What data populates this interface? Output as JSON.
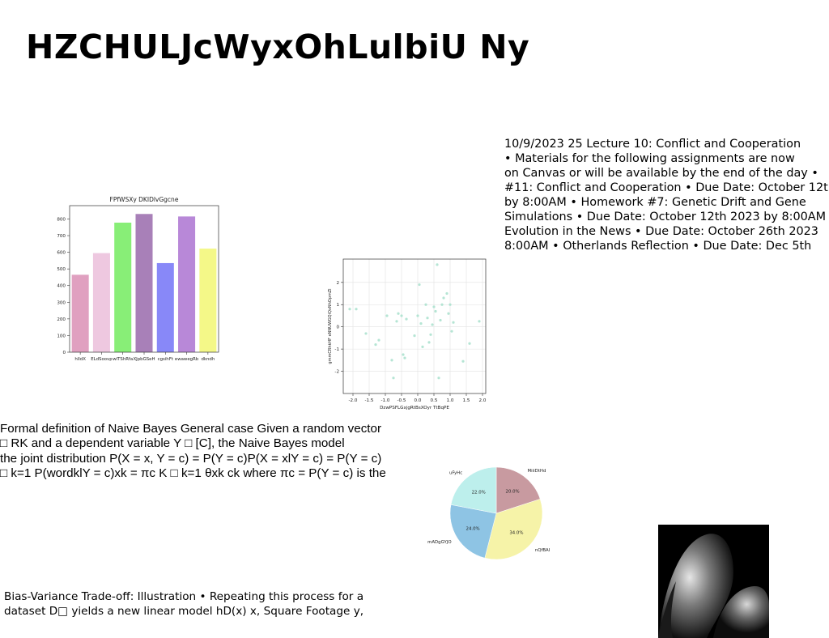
{
  "title": "HZCHULJcWyxOhLulbiU Ny",
  "lecture_text": {
    "lines": [
      "10/9/2023 25 Lecture 10: Conflict and Cooperation",
      "• Materials for the following assignments are now",
      "on Canvas or will be available by the end of the day •",
      "#11: Conflict and Cooperation • Due Date: October 12th",
      "by 8:00AM • Homework #7: Genetic Drift and Gene",
      "Simulations • Due Date: October 12th 2023 by 8:00AM",
      "Evolution in the News • Due Date: October 26th 2023",
      "8:00AM • Otherlands Reflection • Due Date: Dec 5th"
    ]
  },
  "naive_bayes_text": {
    "lines": [
      "Formal definition of Naive Bayes General case Given a random vector",
      "□ RK and a dependent variable Y □ [C], the Naive Bayes model",
      "the joint distribution P(X = x, Y = c) = P(Y = c)P(X = xlY = c) = P(Y = c)",
      "□ k=1 P(wordklY = c)xk = πc K □ k=1 θxk ck where πc = P(Y = c) is the"
    ]
  },
  "bias_text": {
    "lines": [
      "Bias-Variance Trade-off: Illustration • Repeating this process for a",
      "dataset D□ yields a new linear model hD(x) x, Square Footage y,"
    ]
  },
  "chart_data": [
    {
      "type": "bar",
      "title": "FPfWSXy DKIDlvGgcne",
      "categories": [
        "hlldX",
        "ELdSoovp",
        "wlTShRfa",
        "XJpbGSeH",
        "cgsihFt",
        "ewawegRb",
        "dkndh"
      ],
      "values": [
        465,
        595,
        778,
        830,
        535,
        815,
        622
      ],
      "colors": [
        "#e0a0c0",
        "#eec8e0",
        "#88ee77",
        "#a880b8",
        "#8888f8",
        "#b888d8",
        "#f4f888"
      ],
      "ylim": [
        0,
        880
      ],
      "yticks": [
        0,
        100,
        200,
        300,
        400,
        500,
        600,
        700,
        800
      ],
      "xlabel": "",
      "ylabel": "",
      "grid": false
    },
    {
      "type": "scatter",
      "title": "",
      "xlabel": "DzwPSFLGxjgRtBsXOyr TtBqPE",
      "ylabel": "gmmCRhkHF eNNUWGQiQxNhOpmZl",
      "xlim": [
        -2.3,
        2.1
      ],
      "ylim": [
        -3.0,
        3.05
      ],
      "xticks": [
        -2.0,
        -1.5,
        -1.0,
        -0.5,
        0.0,
        0.5,
        1.0,
        1.5,
        2.0
      ],
      "yticks": [
        -2,
        -1,
        0,
        1,
        2
      ],
      "grid": true,
      "color": "#a8e0cc",
      "points": [
        [
          -2.1,
          0.8
        ],
        [
          -1.9,
          0.8
        ],
        [
          -1.6,
          -0.3
        ],
        [
          -1.3,
          -0.8
        ],
        [
          -1.2,
          -0.6
        ],
        [
          -0.95,
          0.5
        ],
        [
          -0.8,
          -1.5
        ],
        [
          -0.75,
          -2.3
        ],
        [
          -0.65,
          0.25
        ],
        [
          -0.6,
          0.6
        ],
        [
          -0.5,
          0.5
        ],
        [
          -0.45,
          -1.25
        ],
        [
          -0.4,
          -1.4
        ],
        [
          -0.35,
          0.35
        ],
        [
          -0.1,
          -0.4
        ],
        [
          0.0,
          0.5
        ],
        [
          0.05,
          1.9
        ],
        [
          0.1,
          0.15
        ],
        [
          0.15,
          -0.9
        ],
        [
          0.25,
          1.0
        ],
        [
          0.3,
          0.4
        ],
        [
          0.35,
          -0.7
        ],
        [
          0.4,
          -0.35
        ],
        [
          0.45,
          0.1
        ],
        [
          0.5,
          0.9
        ],
        [
          0.55,
          0.7
        ],
        [
          0.6,
          2.8
        ],
        [
          0.65,
          -2.3
        ],
        [
          0.7,
          0.3
        ],
        [
          0.75,
          1.0
        ],
        [
          0.8,
          1.3
        ],
        [
          0.9,
          1.5
        ],
        [
          0.95,
          0.6
        ],
        [
          1.0,
          1.0
        ],
        [
          1.05,
          -0.2
        ],
        [
          1.1,
          0.2
        ],
        [
          1.4,
          -1.55
        ],
        [
          1.6,
          -0.75
        ],
        [
          1.9,
          0.25
        ]
      ]
    },
    {
      "type": "pie",
      "title": "",
      "labels": [
        "MiiiDtHd",
        "nQfBAI",
        "mADgGYJO",
        "uFyHc"
      ],
      "values": [
        20.0,
        34.0,
        24.0,
        22.0
      ],
      "value_labels": [
        "20.0%",
        "34.0%",
        "24.0%",
        "22.0%"
      ],
      "colors": [
        "#c89aa0",
        "#f6f3a8",
        "#8ec4e4",
        "#bdefec"
      ],
      "start_angle_deg": 90,
      "direction": "clockwise"
    }
  ],
  "image": {
    "description_icon": "abstract-render-image"
  }
}
